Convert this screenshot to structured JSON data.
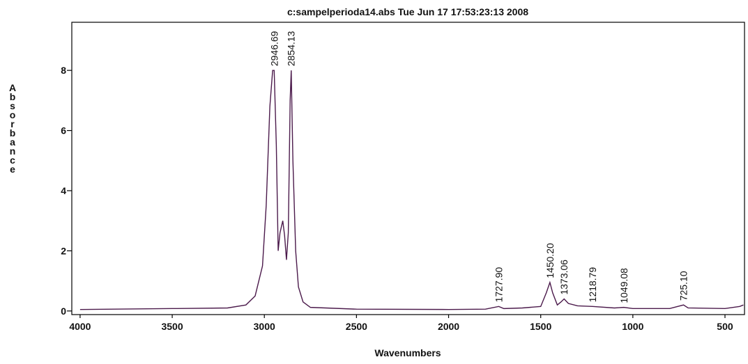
{
  "chart_data": {
    "type": "line",
    "title": "c:sampelperioda14.abs    Tue Jun 17 17:53:23:13 2008",
    "x_label": "Wavenumbers",
    "y_label": "Absorbance",
    "x": [
      4000,
      3500,
      3200,
      3100,
      3050,
      3010,
      2990,
      2970,
      2955,
      2946.69,
      2935,
      2925,
      2915,
      2900,
      2890,
      2880,
      2870,
      2860,
      2854.13,
      2845,
      2830,
      2815,
      2790,
      2750,
      2500,
      2000,
      1800,
      1727.9,
      1700,
      1600,
      1500,
      1470,
      1450.2,
      1435,
      1410,
      1390,
      1373.06,
      1350,
      1300,
      1218.79,
      1100,
      1049.08,
      1000,
      800,
      725.1,
      700,
      500,
      420,
      400
    ],
    "series": [
      {
        "color": "#4b1a4b",
        "values": [
          0.05,
          0.08,
          0.1,
          0.2,
          0.5,
          1.5,
          3.5,
          6.8,
          8.0,
          8.0,
          5.5,
          2.0,
          2.6,
          3.0,
          2.5,
          1.7,
          2.6,
          7.0,
          8.0,
          5.0,
          2.0,
          0.8,
          0.3,
          0.12,
          0.06,
          0.05,
          0.06,
          0.15,
          0.08,
          0.1,
          0.15,
          0.6,
          0.95,
          0.6,
          0.2,
          0.3,
          0.4,
          0.25,
          0.17,
          0.15,
          0.1,
          0.12,
          0.08,
          0.08,
          0.2,
          0.1,
          0.08,
          0.15,
          0.2
        ]
      }
    ],
    "annotations": [
      {
        "label": "2946.69",
        "x": 2946.69,
        "y": 8.0
      },
      {
        "label": "2854.13",
        "x": 2854.13,
        "y": 8.0
      },
      {
        "label": "1727.90",
        "x": 1727.9,
        "y": 0.15
      },
      {
        "label": "1450.20",
        "x": 1450.2,
        "y": 0.95
      },
      {
        "label": "1373.06",
        "x": 1373.06,
        "y": 0.4
      },
      {
        "label": "1218.79",
        "x": 1218.79,
        "y": 0.15
      },
      {
        "label": "1049.08",
        "x": 1049.08,
        "y": 0.12
      },
      {
        "label": "725.10",
        "x": 725.1,
        "y": 0.2
      }
    ],
    "xlim": [
      4045,
      394
    ],
    "ylim": [
      -0.12,
      9.6
    ],
    "xticks": [
      4000,
      3500,
      3000,
      2500,
      2000,
      1500,
      1000,
      500
    ],
    "yticks": [
      0,
      2,
      4,
      6,
      8
    ]
  }
}
